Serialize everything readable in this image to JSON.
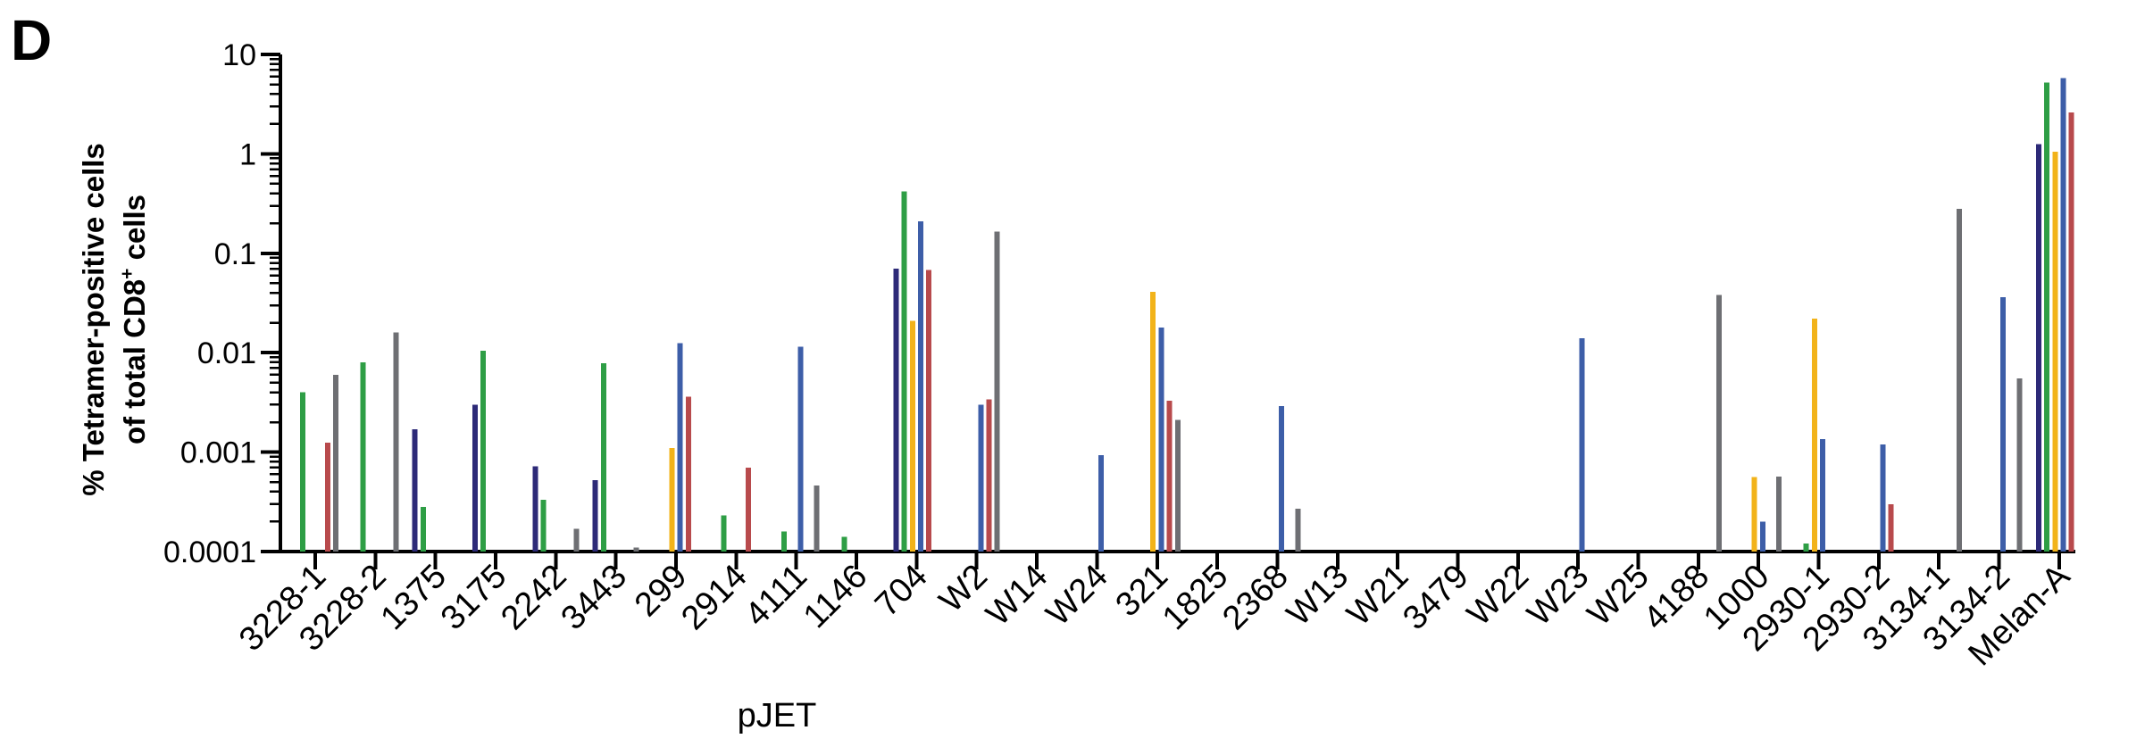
{
  "panel_label": "D",
  "chart_data": {
    "type": "bar",
    "title": "",
    "xlabel": "pJET",
    "ylabel_line1": "% Tetramer-positive cells",
    "ylabel_line2_prefix": "of total CD8",
    "ylabel_line2_superscript": "+",
    "ylabel_line2_suffix": " cells",
    "ylabel": "% Tetramer-positive cells of total CD8+ cells",
    "yscale": "log",
    "ylim": [
      0.0001,
      10
    ],
    "yticks": [
      0.0001,
      0.001,
      0.01,
      0.1,
      1,
      10
    ],
    "ytick_labels": [
      "0.0001",
      "0.001",
      "0.01",
      "0.1",
      "1",
      "10"
    ],
    "grid": false,
    "legend": "none",
    "categories": [
      "3228-1",
      "3228-2",
      "1375",
      "3175",
      "2242",
      "3443",
      "299",
      "2914",
      "4111",
      "1146",
      "704",
      "W2",
      "W14",
      "W24",
      "321",
      "1825",
      "2368",
      "W13",
      "W21",
      "3479",
      "W22",
      "W23",
      "W25",
      "4188",
      "1000",
      "2930-1",
      "2930-2",
      "3134-1",
      "3134-2",
      "Melan-A"
    ],
    "series": [
      {
        "color": "#2d2a78",
        "values": [
          null,
          null,
          0.0017,
          0.003,
          0.00072,
          0.00052,
          null,
          null,
          null,
          null,
          0.07,
          null,
          null,
          null,
          null,
          null,
          null,
          null,
          null,
          null,
          null,
          null,
          null,
          null,
          null,
          null,
          null,
          null,
          null,
          1.25
        ]
      },
      {
        "color": "#2e9e45",
        "values": [
          0.004,
          0.008,
          0.00028,
          0.0105,
          0.00033,
          0.0078,
          null,
          0.00023,
          0.00016,
          0.00014,
          0.42,
          null,
          null,
          null,
          null,
          null,
          null,
          null,
          null,
          null,
          null,
          null,
          null,
          null,
          null,
          0.00012,
          null,
          null,
          null,
          5.2
        ]
      },
      {
        "color": "#f2b31a",
        "values": [
          null,
          null,
          null,
          null,
          null,
          null,
          0.0011,
          null,
          null,
          null,
          0.021,
          null,
          null,
          null,
          0.041,
          null,
          null,
          null,
          null,
          null,
          null,
          null,
          null,
          null,
          0.00056,
          0.022,
          null,
          null,
          null,
          1.05
        ]
      },
      {
        "color": "#3d5ea8",
        "values": [
          null,
          null,
          null,
          null,
          null,
          null,
          0.0125,
          null,
          0.0115,
          null,
          0.21,
          0.003,
          null,
          0.00093,
          0.018,
          null,
          0.0029,
          null,
          null,
          null,
          null,
          0.014,
          null,
          null,
          0.0002,
          0.00135,
          0.0012,
          null,
          0.036,
          5.8
        ]
      },
      {
        "color": "#b84a4c",
        "values": [
          0.00125,
          null,
          null,
          null,
          null,
          null,
          0.0036,
          0.0007,
          null,
          null,
          0.068,
          0.0034,
          null,
          null,
          0.0033,
          null,
          null,
          null,
          null,
          null,
          null,
          null,
          null,
          null,
          null,
          null,
          0.0003,
          null,
          null,
          2.6
        ]
      },
      {
        "color": "#6e6f73",
        "values": [
          0.006,
          0.016,
          null,
          null,
          0.00017,
          0.00011,
          null,
          null,
          0.00046,
          null,
          null,
          0.165,
          null,
          null,
          0.0021,
          null,
          0.00027,
          null,
          null,
          null,
          null,
          null,
          null,
          0.038,
          0.00057,
          null,
          null,
          0.28,
          0.0055,
          null
        ]
      }
    ]
  }
}
